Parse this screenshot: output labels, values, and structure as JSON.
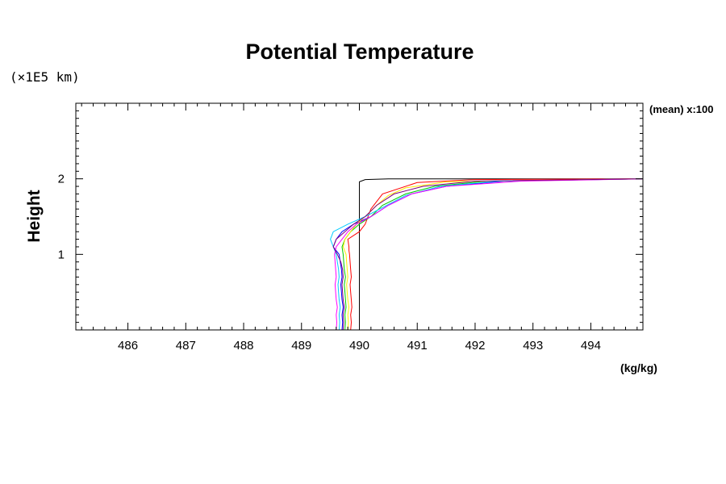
{
  "chart_data": {
    "type": "line",
    "title": "Potential Temperature",
    "ylabel": "Height",
    "xunit": "(kg/kg)",
    "yscale_note": "(×1E5 km)",
    "annotation": "(mean) x:100",
    "xlim": [
      485.1,
      494.9
    ],
    "ylim": [
      0,
      3
    ],
    "x_ticks": [
      486,
      487,
      488,
      489,
      490,
      491,
      492,
      493,
      494
    ],
    "x_tick_labels": [
      "486",
      "487",
      "488",
      "489",
      "490",
      "491",
      "492",
      "493",
      "494"
    ],
    "y_ticks": [
      1,
      2
    ],
    "y_tick_labels": [
      "1",
      "2"
    ],
    "grid": false,
    "legend": "none",
    "series": [
      {
        "color": "#000000",
        "x": [
          490.0,
          490.0,
          490.0,
          490.0,
          490.0,
          490.0,
          490.0,
          490.0,
          490.0,
          490.0,
          490.0,
          490.0,
          490.0,
          490.0,
          490.0,
          490.0,
          490.0,
          490.1,
          490.5,
          491.0,
          494.9
        ],
        "y": [
          0.0,
          0.1,
          0.2,
          0.3,
          0.4,
          0.5,
          0.6,
          0.7,
          0.8,
          0.9,
          1.0,
          1.1,
          1.2,
          1.3,
          1.4,
          1.5,
          1.96,
          1.99,
          2.0,
          2.0,
          2.0
        ]
      },
      {
        "color": "#ff0000",
        "x": [
          489.85,
          489.86,
          489.85,
          489.87,
          489.86,
          489.85,
          489.84,
          489.86,
          489.85,
          489.84,
          489.83,
          489.82,
          489.82,
          489.8,
          490.0,
          490.1,
          490.2,
          490.4,
          491.0,
          492.0,
          494.9
        ],
        "y": [
          0.0,
          0.1,
          0.2,
          0.3,
          0.4,
          0.5,
          0.6,
          0.7,
          0.8,
          0.9,
          1.0,
          1.05,
          1.1,
          1.2,
          1.3,
          1.4,
          1.6,
          1.8,
          1.95,
          1.99,
          2.0
        ]
      },
      {
        "color": "#0000ff",
        "x": [
          489.7,
          489.71,
          489.7,
          489.72,
          489.7,
          489.69,
          489.68,
          489.7,
          489.69,
          489.67,
          489.65,
          489.55,
          489.6,
          489.7,
          489.9,
          490.2,
          490.5,
          490.9,
          491.5,
          492.5,
          494.9
        ],
        "y": [
          0.0,
          0.1,
          0.2,
          0.3,
          0.4,
          0.5,
          0.6,
          0.7,
          0.8,
          0.9,
          1.0,
          1.1,
          1.2,
          1.3,
          1.4,
          1.5,
          1.65,
          1.8,
          1.9,
          1.97,
          2.0
        ]
      },
      {
        "color": "#00cc00",
        "x": [
          489.75,
          489.76,
          489.75,
          489.77,
          489.76,
          489.75,
          489.74,
          489.76,
          489.74,
          489.73,
          489.72,
          489.7,
          489.75,
          489.85,
          490.0,
          490.2,
          490.4,
          490.8,
          491.3,
          492.2,
          494.9
        ],
        "y": [
          0.0,
          0.1,
          0.2,
          0.3,
          0.4,
          0.5,
          0.6,
          0.7,
          0.8,
          0.9,
          1.0,
          1.1,
          1.2,
          1.3,
          1.4,
          1.5,
          1.65,
          1.8,
          1.9,
          1.97,
          2.0
        ]
      },
      {
        "color": "#ffee00",
        "x": [
          489.8,
          489.81,
          489.8,
          489.82,
          489.8,
          489.79,
          489.78,
          489.8,
          489.79,
          489.78,
          489.77,
          489.72,
          489.75,
          489.85,
          489.95,
          490.1,
          490.3,
          490.5,
          490.8,
          491.5,
          494.9
        ],
        "y": [
          0.0,
          0.1,
          0.2,
          0.3,
          0.4,
          0.5,
          0.6,
          0.7,
          0.8,
          0.9,
          1.0,
          1.1,
          1.2,
          1.3,
          1.4,
          1.5,
          1.65,
          1.78,
          1.88,
          1.96,
          2.0
        ]
      },
      {
        "color": "#00ccff",
        "x": [
          489.65,
          489.66,
          489.65,
          489.67,
          489.65,
          489.64,
          489.63,
          489.65,
          489.64,
          489.62,
          489.6,
          489.55,
          489.5,
          489.55,
          489.8,
          490.1,
          490.4,
          490.8,
          491.4,
          492.4,
          494.9
        ],
        "y": [
          0.0,
          0.1,
          0.2,
          0.3,
          0.4,
          0.5,
          0.6,
          0.7,
          0.8,
          0.9,
          1.0,
          1.1,
          1.2,
          1.3,
          1.4,
          1.5,
          1.62,
          1.78,
          1.9,
          1.97,
          2.0
        ]
      },
      {
        "color": "#ff00ff",
        "x": [
          489.6,
          489.61,
          489.6,
          489.62,
          489.6,
          489.59,
          489.58,
          489.6,
          489.59,
          489.58,
          489.57,
          489.6,
          489.7,
          489.8,
          489.95,
          490.2,
          490.5,
          490.9,
          491.5,
          492.8,
          494.9
        ],
        "y": [
          0.0,
          0.1,
          0.2,
          0.3,
          0.4,
          0.5,
          0.6,
          0.7,
          0.8,
          0.9,
          1.0,
          1.1,
          1.2,
          1.3,
          1.4,
          1.5,
          1.65,
          1.8,
          1.9,
          1.97,
          2.0
        ]
      },
      {
        "color": "#800080",
        "x": [
          489.72,
          489.73,
          489.72,
          489.74,
          489.72,
          489.71,
          489.7,
          489.72,
          489.71,
          489.68,
          489.62,
          489.55,
          489.6,
          489.75,
          489.9,
          490.1,
          490.3,
          490.6,
          491.1,
          492.0,
          494.9
        ],
        "y": [
          0.0,
          0.1,
          0.2,
          0.3,
          0.4,
          0.5,
          0.6,
          0.7,
          0.8,
          0.9,
          1.0,
          1.1,
          1.2,
          1.3,
          1.4,
          1.5,
          1.65,
          1.8,
          1.9,
          1.97,
          2.0
        ]
      }
    ]
  }
}
